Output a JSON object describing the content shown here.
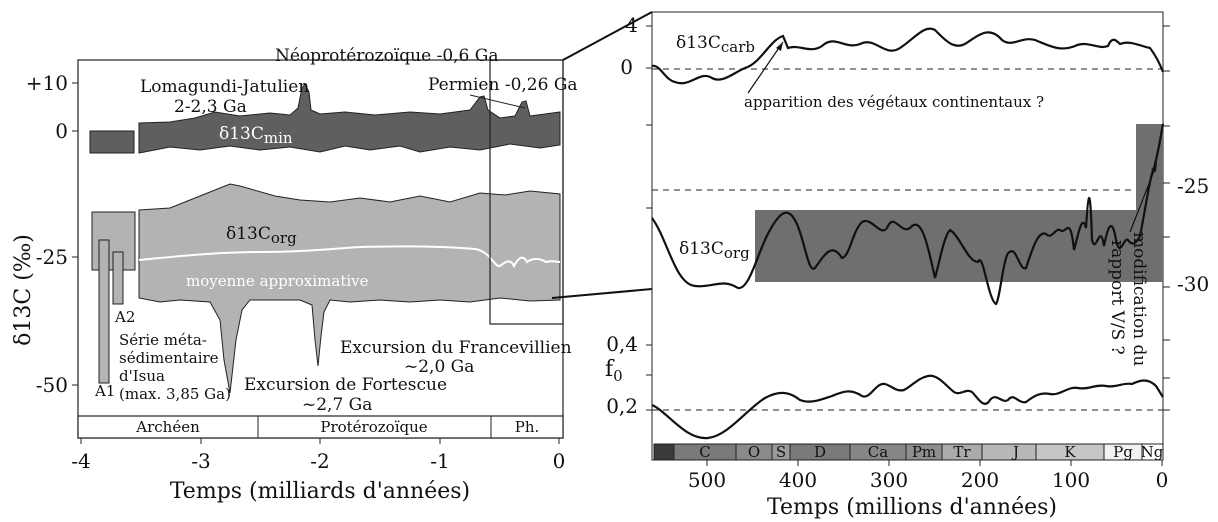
{
  "left": {
    "ylabel": "δ13C (‰)",
    "yticks": [
      "+10",
      "0",
      "-25",
      "-50"
    ],
    "xticks": [
      "-4",
      "-3",
      "-2",
      "-1",
      "0"
    ],
    "xlabel": "Temps (milliards d'années)",
    "eons": [
      "Archéen",
      "Protérozoïque",
      "Ph."
    ],
    "labels": {
      "neoproterozoique": "Néoprotérozoïque -0,6 Ga",
      "lomagundi_1": "Lomagundi-Jatulien",
      "lomagundi_2": "2-2,3 Ga",
      "permien": "Permien -0,26 Ga",
      "cmin_base": "δ13C",
      "cmin_sub": "min",
      "corg_base": "δ13C",
      "corg_sub": "org",
      "moyenne": "moyenne approximative",
      "a1": "A1",
      "a2": "A2",
      "isua_1": "Série méta-",
      "isua_2": "sédimentaire",
      "isua_3": "d'Isua",
      "isua_4": "(max. 3,85 Ga)",
      "francevillien_1": "Excursion du Francevillien",
      "francevillien_2": "~2,0 Ga",
      "fortescue_1": "Excursion de Fortescue",
      "fortescue_2": "~2,7 Ga"
    }
  },
  "right": {
    "left_ticks": [
      "4",
      "0",
      "0,4",
      "0,2"
    ],
    "right_ticks": [
      "-25",
      "-30"
    ],
    "f0_base": "f",
    "f0_sub": "0",
    "ccarb_base": "δ13C",
    "ccarb_sub": "carb",
    "corg_base": "δ13C",
    "corg_sub": "org",
    "vegetaux": "apparition des végétaux continentaux ?",
    "rapport_1": "modification du",
    "rapport_2": "rapport V/S ?",
    "periods": [
      "C",
      "O",
      "S",
      "D",
      "Ca",
      "Pm",
      "Tr",
      "J",
      "K",
      "Pg",
      "Ng"
    ],
    "xticks": [
      "500",
      "400",
      "300",
      "200",
      "100",
      "0"
    ],
    "xlabel": "Temps (millions d'années)"
  },
  "colors": {
    "dark_gray": "#5f5f5f",
    "light_gray": "#b3b3b3",
    "mid_gray": "#6f6f6f"
  }
}
